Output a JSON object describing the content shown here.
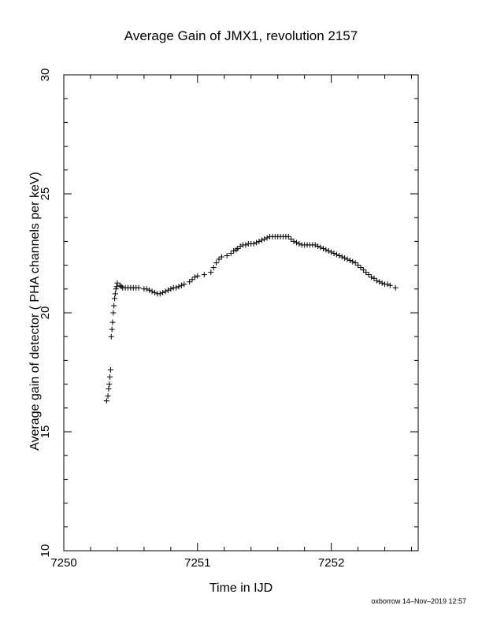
{
  "chart_data": {
    "type": "scatter",
    "title": "Average Gain of JMX1, revolution 2157",
    "xlabel": "Time in IJD",
    "ylabel": "Average gain of detector ( PHA channels per keV)",
    "xlim": [
      7250,
      7252.65
    ],
    "ylim": [
      10,
      30
    ],
    "x_ticks": [
      7250,
      7251,
      7252
    ],
    "x_tick_labels": [
      "7250",
      "7251",
      "7252"
    ],
    "y_ticks": [
      10,
      15,
      20,
      25,
      30
    ],
    "y_tick_labels": [
      "10",
      "15",
      "20",
      "25",
      "30"
    ],
    "marker": "plus",
    "grid": false,
    "series": [
      {
        "x": [
          7250.32,
          7250.33,
          7250.335,
          7250.34,
          7250.345,
          7250.35,
          7250.355,
          7250.36,
          7250.365,
          7250.37,
          7250.375,
          7250.38,
          7250.385,
          7250.39,
          7250.395,
          7250.4,
          7250.42,
          7250.43,
          7250.44,
          7250.46,
          7250.48,
          7250.5,
          7250.52,
          7250.54,
          7250.56,
          7250.6,
          7250.62,
          7250.64,
          7250.66,
          7250.68,
          7250.7,
          7250.72,
          7250.74,
          7250.76,
          7250.78,
          7250.8,
          7250.82,
          7250.84,
          7250.86,
          7250.88,
          7250.9,
          7250.94,
          7250.96,
          7250.98,
          7251.0,
          7251.05,
          7251.1,
          7251.12,
          7251.14,
          7251.16,
          7251.18,
          7251.22,
          7251.25,
          7251.27,
          7251.29,
          7251.3,
          7251.32,
          7251.34,
          7251.36,
          7251.38,
          7251.4,
          7251.42,
          7251.44,
          7251.46,
          7251.48,
          7251.5,
          7251.52,
          7251.54,
          7251.56,
          7251.58,
          7251.6,
          7251.62,
          7251.64,
          7251.66,
          7251.68,
          7251.7,
          7251.72,
          7251.74,
          7251.76,
          7251.78,
          7251.8,
          7251.82,
          7251.84,
          7251.86,
          7251.88,
          7251.9,
          7251.92,
          7251.94,
          7251.96,
          7251.98,
          7252.0,
          7252.02,
          7252.04,
          7252.06,
          7252.08,
          7252.1,
          7252.12,
          7252.14,
          7252.16,
          7252.18,
          7252.2,
          7252.22,
          7252.24,
          7252.26,
          7252.28,
          7252.3,
          7252.32,
          7252.34,
          7252.36,
          7252.38,
          7252.4,
          7252.42,
          7252.44,
          7252.48
        ],
        "y": [
          16.3,
          16.5,
          16.8,
          17.0,
          17.3,
          17.6,
          19.0,
          19.3,
          19.6,
          20.0,
          20.3,
          20.6,
          20.8,
          21.0,
          21.1,
          21.25,
          21.15,
          21.1,
          21.05,
          21.05,
          21.05,
          21.05,
          21.05,
          21.05,
          21.05,
          21.0,
          21.0,
          20.95,
          20.9,
          20.85,
          20.8,
          20.8,
          20.85,
          20.9,
          20.95,
          21.0,
          21.05,
          21.05,
          21.1,
          21.15,
          21.2,
          21.3,
          21.4,
          21.5,
          21.55,
          21.6,
          21.7,
          21.9,
          22.1,
          22.25,
          22.35,
          22.4,
          22.5,
          22.6,
          22.65,
          22.7,
          22.8,
          22.85,
          22.85,
          22.9,
          22.9,
          22.9,
          22.95,
          23.0,
          23.05,
          23.1,
          23.15,
          23.2,
          23.2,
          23.2,
          23.2,
          23.2,
          23.2,
          23.2,
          23.2,
          23.1,
          23.0,
          22.95,
          22.9,
          22.85,
          22.85,
          22.85,
          22.85,
          22.85,
          22.85,
          22.8,
          22.75,
          22.7,
          22.65,
          22.6,
          22.55,
          22.5,
          22.45,
          22.4,
          22.35,
          22.3,
          22.25,
          22.2,
          22.15,
          22.1,
          22.0,
          21.9,
          21.8,
          21.7,
          21.6,
          21.5,
          21.45,
          21.35,
          21.3,
          21.25,
          21.2,
          21.2,
          21.15,
          21.05
        ]
      }
    ]
  },
  "footer": "oxborrow 14–Nov–2019 12:57"
}
